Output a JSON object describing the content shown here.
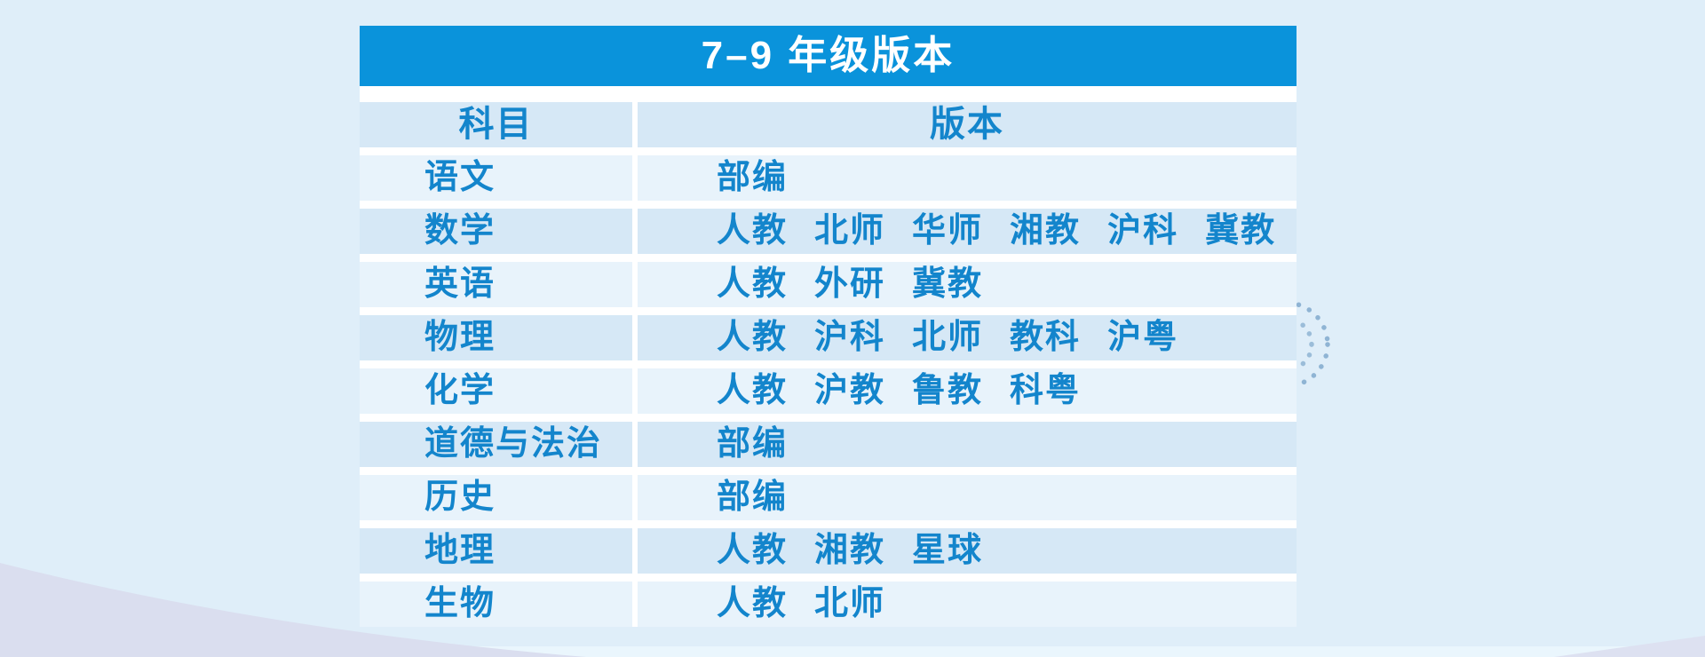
{
  "title": "7–9 年级版本",
  "table": {
    "columns": {
      "subject": "科目",
      "version": "版本"
    },
    "rows": [
      {
        "subject": "语文",
        "versions": [
          "部编"
        ]
      },
      {
        "subject": "数学",
        "versions": [
          "人教",
          "北师",
          "华师",
          "湘教",
          "沪科",
          "冀教"
        ]
      },
      {
        "subject": "英语",
        "versions": [
          "人教",
          "外研",
          "冀教"
        ]
      },
      {
        "subject": "物理",
        "versions": [
          "人教",
          "沪科",
          "北师",
          "教科",
          "沪粤"
        ]
      },
      {
        "subject": "化学",
        "versions": [
          "人教",
          "沪教",
          "鲁教",
          "科粤"
        ]
      },
      {
        "subject": "道德与法治",
        "versions": [
          "部编"
        ]
      },
      {
        "subject": "历史",
        "versions": [
          "部编"
        ]
      },
      {
        "subject": "地理",
        "versions": [
          "人教",
          "湘教",
          "星球"
        ]
      },
      {
        "subject": "生物",
        "versions": [
          "人教",
          "北师"
        ]
      }
    ]
  },
  "chart_data": {
    "type": "table",
    "title": "7–9 年级版本",
    "columns": [
      "科目",
      "版本"
    ],
    "rows": [
      [
        "语文",
        "部编"
      ],
      [
        "数学",
        "人教 北师 华师 湘教 沪科 冀教"
      ],
      [
        "英语",
        "人教 外研 冀教"
      ],
      [
        "物理",
        "人教 沪科 北师 教科 沪粤"
      ],
      [
        "化学",
        "人教 沪教 鲁教 科粤"
      ],
      [
        "道德与法治",
        "部编"
      ],
      [
        "历史",
        "部编"
      ],
      [
        "地理",
        "人教 湘教 星球"
      ],
      [
        "生物",
        "人教 北师"
      ]
    ]
  },
  "colors": {
    "header_blue": "#0a93db",
    "text_blue": "#1385cc",
    "row_dark": "#d6e8f6",
    "row_light": "#e8f3fb",
    "page_bg": "#dfeef9",
    "gap_white": "#ffffff",
    "wedge_lavender": "#dadeef",
    "dot_blue": "#8fb4d4"
  },
  "icons": {
    "dotted_swirl": "dotted-swirl-icon"
  }
}
